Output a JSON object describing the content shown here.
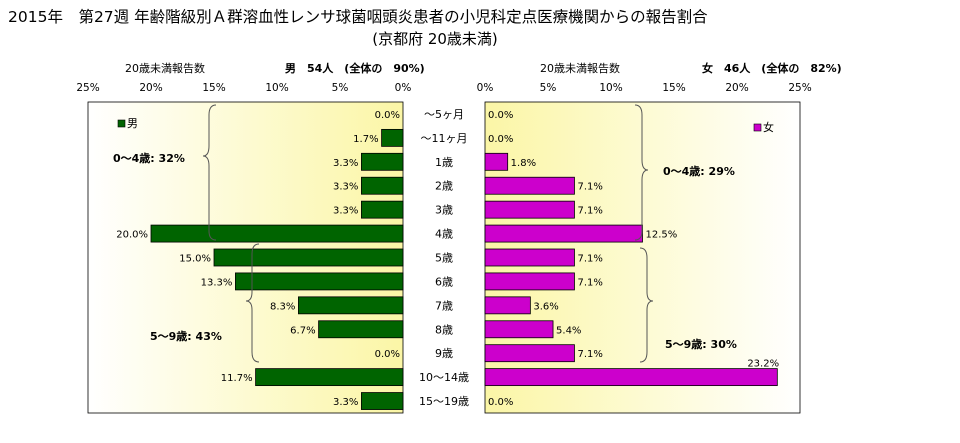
{
  "chart_data": {
    "type": "bar",
    "title": "2015年　第27週 年齢階級別Ａ群溶血性レンサ球菌咽頭炎患者の小児科定点医療機関からの報告割合",
    "subtitle": "(京都府 20歳未満)",
    "categories": [
      "～5ヶ月",
      "～11ヶ月",
      "1歳",
      "2歳",
      "3歳",
      "4歳",
      "5歳",
      "6歳",
      "7歳",
      "8歳",
      "9歳",
      "10～14歳",
      "15～19歳"
    ],
    "xlim": [
      0,
      25
    ],
    "ticks": [
      "25%",
      "20%",
      "15%",
      "10%",
      "5%",
      "0%"
    ],
    "ticks_right": [
      "0%",
      "5%",
      "10%",
      "15%",
      "20%",
      "25%"
    ],
    "series": [
      {
        "name": "男",
        "header_axis": "20歳未満報告数",
        "header_summary": "男　54人　(全体の　90%)",
        "color": "#006400",
        "values": [
          0.0,
          1.7,
          3.3,
          3.3,
          3.3,
          20.0,
          15.0,
          13.3,
          8.3,
          6.7,
          0.0,
          11.7,
          3.3
        ],
        "labels": [
          "0.0%",
          "1.7%",
          "3.3%",
          "3.3%",
          "3.3%",
          "20.0%",
          "15.0%",
          "13.3%",
          "8.3%",
          "6.7%",
          "0.0%",
          "11.7%",
          "3.3%"
        ],
        "groups": [
          {
            "label": "0～4歳: 32%"
          },
          {
            "label": "5～9歳: 43%"
          }
        ]
      },
      {
        "name": "女",
        "header_axis": "20歳未満報告数",
        "header_summary": "女　46人　(全体の　82%)",
        "color": "#cc00cc",
        "values": [
          0.0,
          0.0,
          1.8,
          7.1,
          7.1,
          12.5,
          7.1,
          7.1,
          3.6,
          5.4,
          7.1,
          23.2,
          0.0
        ],
        "labels": [
          "0.0%",
          "0.0%",
          "1.8%",
          "7.1%",
          "7.1%",
          "12.5%",
          "7.1%",
          "7.1%",
          "3.6%",
          "5.4%",
          "7.1%",
          "23.2%",
          "0.0%"
        ],
        "groups": [
          {
            "label": "0～4歳: 29%"
          },
          {
            "label": "5～9歳: 30%"
          }
        ]
      }
    ],
    "grid": false,
    "background": "gradient light yellow"
  }
}
